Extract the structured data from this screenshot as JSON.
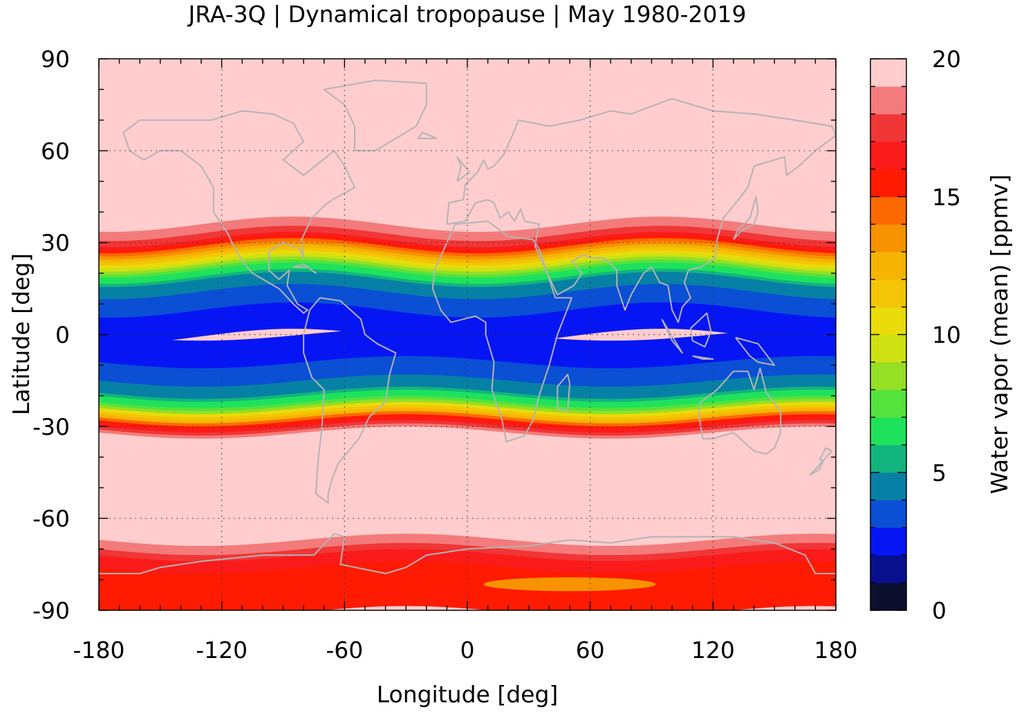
{
  "title": "JRA-3Q | Dynamical tropopause | May 1980-2019",
  "map": {
    "type": "global-lonlat-map",
    "field": "Water vapor (mean)",
    "units": "ppmv",
    "lon_range": [
      -180,
      180
    ],
    "lat_range": [
      -90,
      90
    ],
    "grid": "dotted at 60 deg lon / 30 deg lat",
    "coastlines": true,
    "coastline_color": "#b4b4b4",
    "approx_zonal_profile": [
      {
        "lat": 90,
        "value": 20
      },
      {
        "lat": 40,
        "value": 20
      },
      {
        "lat": 33,
        "value": 18
      },
      {
        "lat": 30,
        "value": 16
      },
      {
        "lat": 26,
        "value": 12
      },
      {
        "lat": 22,
        "value": 8
      },
      {
        "lat": 18,
        "value": 5
      },
      {
        "lat": 12,
        "value": 3.5
      },
      {
        "lat": 5,
        "value": 2.5
      },
      {
        "lat": 0,
        "value": 2.5
      },
      {
        "lat": -6,
        "value": 2.5
      },
      {
        "lat": -12,
        "value": 3.5
      },
      {
        "lat": -18,
        "value": 4.5
      },
      {
        "lat": -22,
        "value": 7
      },
      {
        "lat": -26,
        "value": 12
      },
      {
        "lat": -29,
        "value": 16
      },
      {
        "lat": -33,
        "value": 20
      },
      {
        "lat": -65,
        "value": 20
      },
      {
        "lat": -72,
        "value": 17
      },
      {
        "lat": -80,
        "value": 15
      },
      {
        "lat": -90,
        "value": 15
      }
    ]
  },
  "xaxis": {
    "label": "Longitude [deg]",
    "ticks": [
      {
        "value": -180,
        "label": "-180"
      },
      {
        "value": -120,
        "label": "-120"
      },
      {
        "value": -60,
        "label": "-60"
      },
      {
        "value": 0,
        "label": "0"
      },
      {
        "value": 60,
        "label": "60"
      },
      {
        "value": 120,
        "label": "120"
      },
      {
        "value": 180,
        "label": "180"
      }
    ]
  },
  "yaxis": {
    "label": "Latitude [deg]",
    "ticks": [
      {
        "value": 90,
        "label": "90"
      },
      {
        "value": 60,
        "label": "60"
      },
      {
        "value": 30,
        "label": "30"
      },
      {
        "value": 0,
        "label": "0"
      },
      {
        "value": -30,
        "label": "-30"
      },
      {
        "value": -60,
        "label": "-60"
      },
      {
        "value": -90,
        "label": "-90"
      }
    ]
  },
  "colorbar": {
    "label": "Water vapor (mean) [ppmv]",
    "min": 0,
    "max": 20,
    "ticks": [
      {
        "value": 0,
        "label": "0"
      },
      {
        "value": 5,
        "label": "5"
      },
      {
        "value": 10,
        "label": "10"
      },
      {
        "value": 15,
        "label": "15"
      },
      {
        "value": 20,
        "label": "20"
      }
    ],
    "colors": [
      "#0d0f2e",
      "#08108e",
      "#0615f4",
      "#0a4fd4",
      "#0780a5",
      "#12b57d",
      "#1fe25c",
      "#55e23c",
      "#95df24",
      "#cee113",
      "#eadb0b",
      "#f3c506",
      "#f5b403",
      "#f79200",
      "#fd6a02",
      "#ff1b02",
      "#fb1b1b",
      "#f03636",
      "#f47b7b",
      "#ffcdcd"
    ]
  }
}
